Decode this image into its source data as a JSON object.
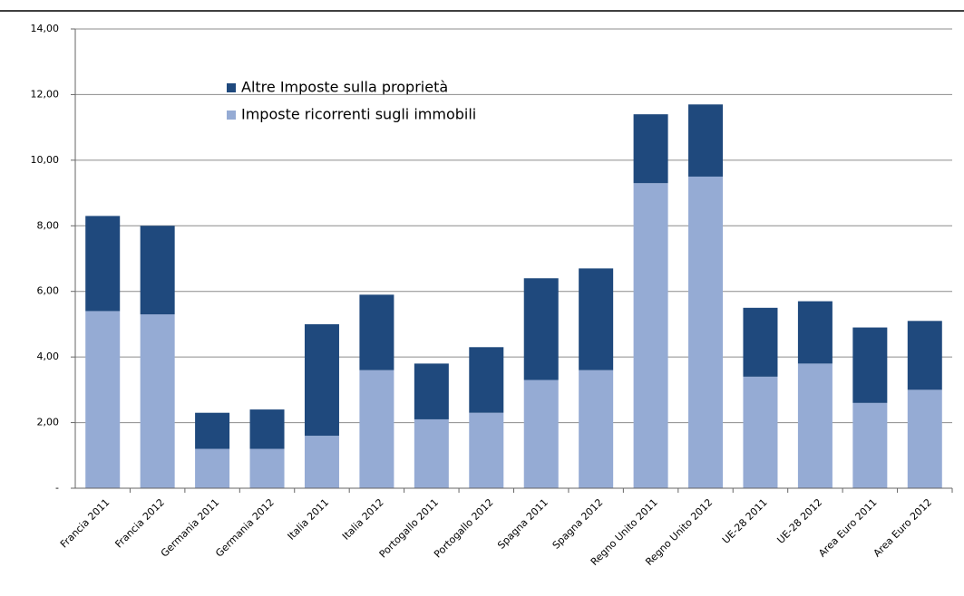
{
  "chart_data": {
    "type": "stacked-bar",
    "categories": [
      "Francia 2011",
      "Francia 2012",
      "Germania 2011",
      "Germania 2012",
      "Italia 2011",
      "Italia 2012",
      "Portogallo 2011",
      "Portogallo 2012",
      "Spagna 2011",
      "Spagna 2012",
      "Regno Unito 2011",
      "Regno Unito 2012",
      "UE-28 2011",
      "UE-28 2012",
      "Area Euro 2011",
      "Area Euro 2012"
    ],
    "series": [
      {
        "name": "Imposte ricorrenti sugli immobili",
        "color": "#95abd4",
        "values": [
          5.4,
          5.3,
          1.2,
          1.2,
          1.6,
          3.6,
          2.1,
          2.3,
          3.3,
          3.6,
          9.3,
          9.5,
          3.4,
          3.8,
          2.6,
          3.0
        ]
      },
      {
        "name": "Altre Imposte sulla proprietà",
        "color": "#1f497d",
        "values": [
          2.9,
          2.7,
          1.1,
          1.2,
          3.4,
          2.3,
          1.7,
          2.0,
          3.1,
          3.1,
          2.1,
          2.2,
          2.1,
          1.9,
          2.3,
          2.1
        ]
      }
    ],
    "ylim": [
      0,
      14
    ],
    "yticks": [
      {
        "value": 0,
        "label": "-"
      },
      {
        "value": 2,
        "label": "2,00"
      },
      {
        "value": 4,
        "label": "4,00"
      },
      {
        "value": 6,
        "label": "6,00"
      },
      {
        "value": 8,
        "label": "8,00"
      },
      {
        "value": 10,
        "label": "10,00"
      },
      {
        "value": 12,
        "label": "12,00"
      },
      {
        "value": 14,
        "label": "14,00"
      }
    ],
    "grid": true
  }
}
